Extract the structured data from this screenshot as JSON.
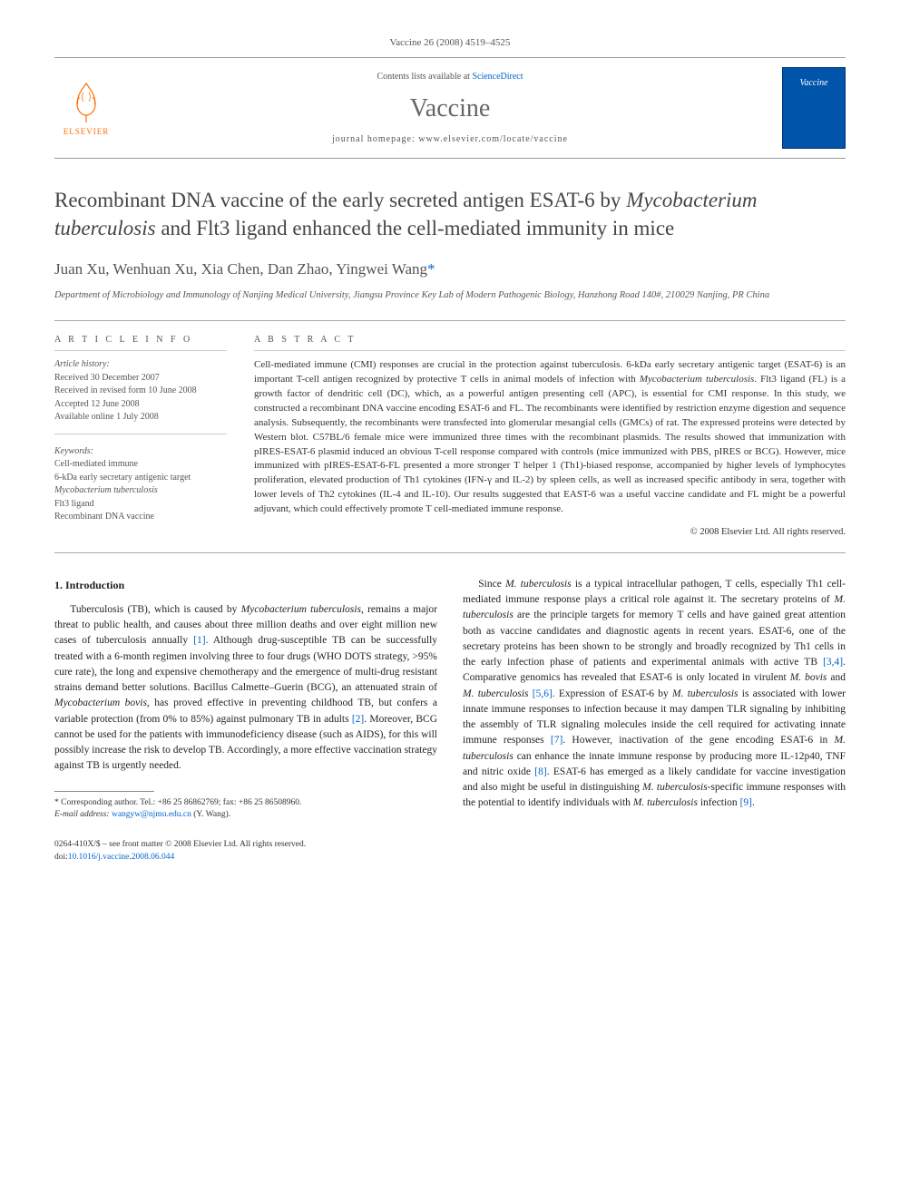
{
  "citation": "Vaccine 26 (2008) 4519–4525",
  "header": {
    "publisher_name": "ELSEVIER",
    "contents_prefix": "Contents lists available at ",
    "contents_link": "ScienceDirect",
    "journal_name": "Vaccine",
    "homepage_label": "journal homepage: www.elsevier.com/locate/vaccine",
    "cover_label": "Vaccine"
  },
  "title_html": "Recombinant DNA vaccine of the early secreted antigen ESAT-6 by <em>Mycobacterium tuberculosis</em> and Flt3 ligand enhanced the cell-mediated immunity in mice",
  "authors": "Juan Xu, Wenhuan Xu, Xia Chen, Dan Zhao, Yingwei Wang",
  "corr_marker": "*",
  "affiliation": "Department of Microbiology and Immunology of Nanjing Medical University, Jiangsu Province Key Lab of Modern Pathogenic Biology, Hanzhong Road 140#, 210029 Nanjing, PR China",
  "article_info": {
    "heading": "A R T I C L E   I N F O",
    "history_label": "Article history:",
    "received": "Received 30 December 2007",
    "revised": "Received in revised form 10 June 2008",
    "accepted": "Accepted 12 June 2008",
    "online": "Available online 1 July 2008",
    "keywords_label": "Keywords:",
    "keywords": [
      "Cell-mediated immune",
      "6-kDa early secretary antigenic target",
      "Mycobacterium tuberculosis",
      "Flt3 ligand",
      "Recombinant DNA vaccine"
    ]
  },
  "abstract": {
    "heading": "A B S T R A C T",
    "text_html": "Cell-mediated immune (CMI) responses are crucial in the protection against tuberculosis. 6-kDa early secretary antigenic target (ESAT-6) is an important T-cell antigen recognized by protective T cells in animal models of infection with <em>Mycobacterium tuberculosis</em>. Flt3 ligand (FL) is a growth factor of dendritic cell (DC), which, as a powerful antigen presenting cell (APC), is essential for CMI response. In this study, we constructed a recombinant DNA vaccine encoding ESAT-6 and FL. The recombinants were identified by restriction enzyme digestion and sequence analysis. Subsequently, the recombinants were transfected into glomerular mesangial cells (GMCs) of rat. The expressed proteins were detected by Western blot. C57BL/6 female mice were immunized three times with the recombinant plasmids. The results showed that immunization with pIRES-ESAT-6 plasmid induced an obvious T-cell response compared with controls (mice immunized with PBS, pIRES or BCG). However, mice immunized with pIRES-ESAT-6-FL presented a more stronger T helper 1 (Th1)-biased response, accompanied by higher levels of lymphocytes proliferation, elevated production of Th1 cytokines (IFN-γ and IL-2) by spleen cells, as well as increased specific antibody in sera, together with lower levels of Th2 cytokines (IL-4 and IL-10). Our results suggested that EAST-6 was a useful vaccine candidate and FL might be a powerful adjuvant, which could effectively promote T cell-mediated immune response.",
    "copyright": "© 2008 Elsevier Ltd. All rights reserved."
  },
  "body": {
    "section_heading": "1.  Introduction",
    "p1_html": "Tuberculosis (TB), which is caused by <em>Mycobacterium tuberculosis</em>, remains a major threat to public health, and causes about three million deaths and over eight million new cases of tuberculosis annually <span class=\"ref-link\">[1]</span>. Although drug-susceptible TB can be successfully treated with a 6-month regimen involving three to four drugs (WHO DOTS strategy, &gt;95% cure rate), the long and expensive chemotherapy and the emergence of multi-drug resistant strains demand better solutions. Bacillus Calmette–Guerin (BCG), an attenuated strain of <em>Mycobacterium bovis</em>, has proved effective in preventing childhood TB, but confers a variable protection (from 0% to 85%) against pulmonary TB in adults <span class=\"ref-link\">[2]</span>. Moreover, BCG cannot be used for the patients with immunodeficiency disease (such as AIDS), for this will possibly increase the risk to develop TB. Accordingly, a more effective vaccination strategy against TB is urgently needed.",
    "p2_html": "Since <em>M. tuberculosis</em> is a typical intracellular pathogen, T cells, especially Th1 cell-mediated immune response plays a critical role against it. The secretary proteins of <em>M. tuberculosis</em> are the principle targets for memory T cells and have gained great attention both as vaccine candidates and diagnostic agents in recent years. ESAT-6, one of the secretary proteins has been shown to be strongly and broadly recognized by Th1 cells in the early infection phase of patients and experimental animals with active TB <span class=\"ref-link\">[3,4]</span>. Comparative genomics has revealed that ESAT-6 is only located in virulent <em>M. bovis</em> and <em>M. tuberculosis</em> <span class=\"ref-link\">[5,6]</span>. Expression of ESAT-6 by <em>M. tuberculosis</em> is associated with lower innate immune responses to infection because it may dampen TLR signaling by inhibiting the assembly of TLR signaling molecules inside the cell required for activating innate immune responses <span class=\"ref-link\">[7]</span>. However, inactivation of the gene encoding ESAT-6 in <em>M. tuberculosis</em> can enhance the innate immune response by producing more IL-12p40, TNF and nitric oxide <span class=\"ref-link\">[8]</span>. ESAT-6 has emerged as a likely candidate for vaccine investigation and also might be useful in distinguishing <em>M. tuberculosis</em>-specific immune responses with the potential to identify individuals with <em>M. tuberculosis</em> infection <span class=\"ref-link\">[9]</span>."
  },
  "footnote": {
    "corr_label": "* Corresponding author. Tel.: +86 25 86862769; fax: +86 25 86508960.",
    "email_label": "E-mail address:",
    "email": "wangyw@njmu.edu.cn",
    "email_name": "(Y. Wang)."
  },
  "footer": {
    "issn_line": "0264-410X/$ – see front matter © 2008 Elsevier Ltd. All rights reserved.",
    "doi_label": "doi:",
    "doi": "10.1016/j.vaccine.2008.06.044"
  },
  "colors": {
    "link": "#0066cc",
    "publisher_orange": "#ff6c00",
    "cover_blue": "#0055aa",
    "rule": "#999999",
    "text": "#333333"
  }
}
